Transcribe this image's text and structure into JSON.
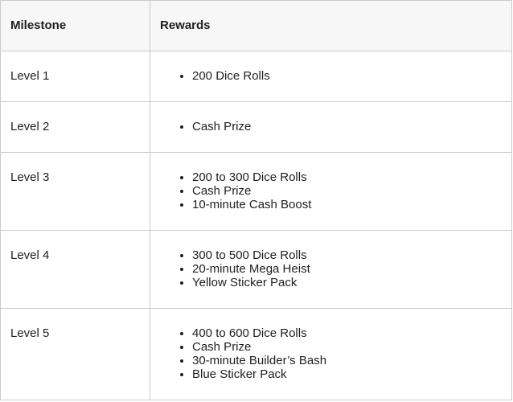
{
  "table": {
    "columns": [
      {
        "label": "Milestone"
      },
      {
        "label": "Rewards"
      }
    ],
    "rows": [
      {
        "milestone": "Level 1",
        "rewards": [
          "200 Dice Rolls"
        ]
      },
      {
        "milestone": "Level 2",
        "rewards": [
          "Cash Prize"
        ]
      },
      {
        "milestone": "Level 3",
        "rewards": [
          "200 to 300 Dice Rolls",
          "Cash Prize",
          "10-minute Cash Boost"
        ]
      },
      {
        "milestone": "Level 4",
        "rewards": [
          "300 to 500 Dice Rolls",
          "20-minute Mega Heist",
          "Yellow Sticker Pack"
        ]
      },
      {
        "milestone": "Level 5",
        "rewards": [
          "400 to 600 Dice Rolls",
          "Cash Prize",
          "30-minute Builder’s Bash",
          "Blue Sticker Pack"
        ]
      }
    ],
    "colors": {
      "border": "#cbcbce",
      "header_bg": "#f7f7f8",
      "row_bg": "#ffffff",
      "text": "#1d1e20",
      "page_bg": "#ffffff"
    }
  }
}
